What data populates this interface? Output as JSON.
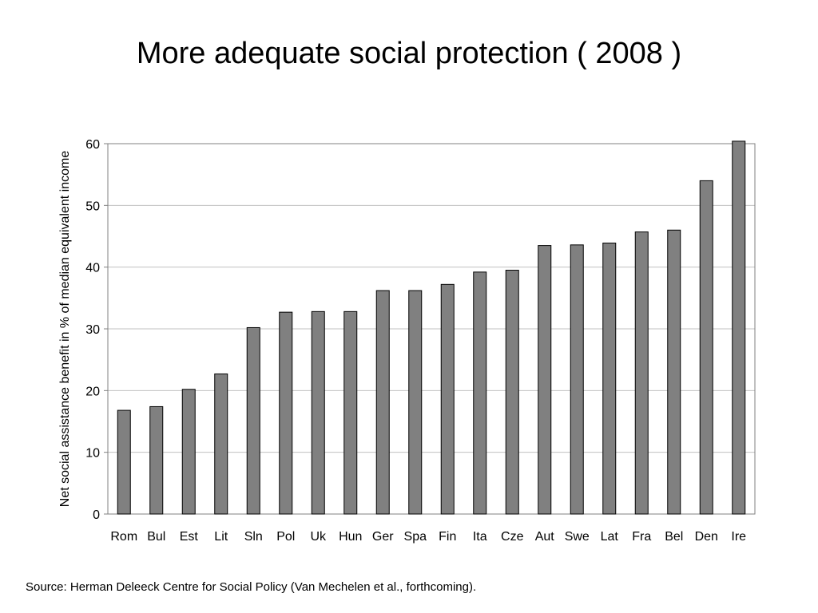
{
  "slide": {
    "title": "More adequate social protection ( 2008 )",
    "source": "Source: Herman Deleeck Centre for Social Policy (Van Mechelen et al., forthcoming)."
  },
  "chart_data": {
    "type": "bar",
    "title": "",
    "xlabel": "",
    "ylabel": "Net social assistance benefit in % of median equivalent income",
    "categories": [
      "Rom",
      "Bul",
      "Est",
      "Lit",
      "Sln",
      "Pol",
      "Uk",
      "Hun",
      "Ger",
      "Spa",
      "Fin",
      "Ita",
      "Cze",
      "Aut",
      "Swe",
      "Lat",
      "Fra",
      "Bel",
      "Den",
      "Ire"
    ],
    "values": [
      16.8,
      17.4,
      20.2,
      22.7,
      30.2,
      32.7,
      32.8,
      32.8,
      36.2,
      36.2,
      37.2,
      39.2,
      39.5,
      43.5,
      43.6,
      43.9,
      45.7,
      46.0,
      54.0,
      60.4
    ],
    "yticks": [
      0,
      10,
      20,
      30,
      40,
      50,
      60
    ],
    "ylim": [
      0,
      60
    ],
    "grid": true,
    "legend": "none",
    "bar_color": "#808080"
  }
}
